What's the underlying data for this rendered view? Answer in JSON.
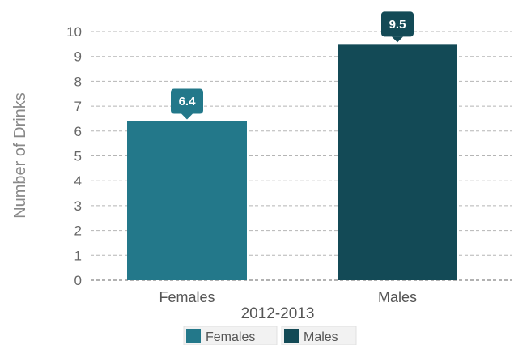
{
  "chart_data": {
    "type": "bar",
    "categories": [
      "Females",
      "Males"
    ],
    "values": [
      6.4,
      9.5
    ],
    "value_labels": [
      "6.4",
      "9.5"
    ],
    "colors": [
      "#23788a",
      "#134a56"
    ],
    "xlabel": "2012-2013",
    "ylabel": "Number of Drinks",
    "ylim": [
      0,
      10
    ],
    "yticks": [
      "0",
      "1",
      "2",
      "3",
      "4",
      "5",
      "6",
      "7",
      "8",
      "9",
      "10"
    ],
    "grid": true,
    "legend_position": "bottom",
    "legend": [
      {
        "name": "Females",
        "color": "#23788a"
      },
      {
        "name": "Males",
        "color": "#134a56"
      }
    ]
  }
}
